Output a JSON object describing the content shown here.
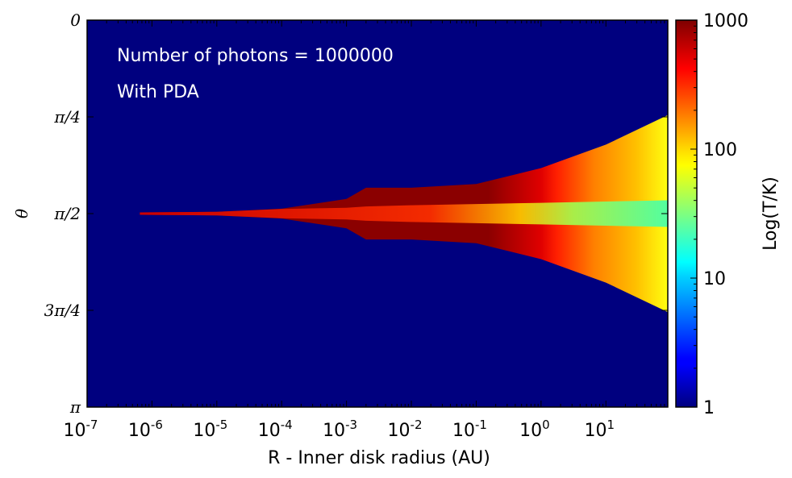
{
  "chart_data": {
    "type": "heatmap",
    "annotations": [
      "Number of photons = 1000000",
      "With PDA"
    ],
    "xlabel": "R - Inner disk radius (AU)",
    "ylabel": "θ",
    "x_scale": "log",
    "x_ticks": [
      {
        "value": 1e-07,
        "base": "10",
        "exp": "-7"
      },
      {
        "value": 1e-06,
        "base": "10",
        "exp": "-6"
      },
      {
        "value": 1e-05,
        "base": "10",
        "exp": "-5"
      },
      {
        "value": 0.0001,
        "base": "10",
        "exp": "-4"
      },
      {
        "value": 0.001,
        "base": "10",
        "exp": "-3"
      },
      {
        "value": 0.01,
        "base": "10",
        "exp": "-2"
      },
      {
        "value": 0.1,
        "base": "10",
        "exp": "-1"
      },
      {
        "value": 1.0,
        "base": "10",
        "exp": "0"
      },
      {
        "value": 10.0,
        "base": "10",
        "exp": "1"
      }
    ],
    "xlim": [
      1e-07,
      90
    ],
    "y_ticks": [
      {
        "value": 0,
        "label": "0"
      },
      {
        "value": 0.7854,
        "label": "π/4"
      },
      {
        "value": 1.5708,
        "label": "π/2"
      },
      {
        "value": 2.3562,
        "label": "3π/4"
      },
      {
        "value": 3.1416,
        "label": "π"
      }
    ],
    "ylim": [
      0,
      3.1416
    ],
    "colorbar": {
      "label": "Log(T/K)",
      "scale": "log",
      "ticks": [
        {
          "value": 1,
          "label": "1"
        },
        {
          "value": 10,
          "label": "10"
        },
        {
          "value": 100,
          "label": "100"
        },
        {
          "value": 1000,
          "label": "1000"
        }
      ],
      "range": [
        1,
        1000
      ],
      "colormap": "jet"
    },
    "background_value": 1,
    "disk_profile": [
      {
        "r": 6.5e-07,
        "half_width": 0.01,
        "T_midplane": 1000,
        "T_surface": 1000
      },
      {
        "r": 1e-05,
        "half_width": 0.015,
        "T_midplane": 1000,
        "T_surface": 1000
      },
      {
        "r": 0.0001,
        "half_width": 0.04,
        "T_midplane": 1000,
        "T_surface": 1000
      },
      {
        "r": 0.001,
        "half_width": 0.12,
        "T_midplane": 800,
        "T_surface": 1000
      },
      {
        "r": 0.002,
        "half_width": 0.21,
        "T_midplane": 700,
        "T_surface": 1000
      },
      {
        "r": 0.01,
        "half_width": 0.21,
        "T_midplane": 550,
        "T_surface": 1000
      },
      {
        "r": 0.1,
        "half_width": 0.24,
        "T_midplane": 300,
        "T_surface": 900
      },
      {
        "r": 1,
        "half_width": 0.37,
        "T_midplane": 70,
        "T_surface": 500
      },
      {
        "r": 10,
        "half_width": 0.56,
        "T_midplane": 30,
        "T_surface": 200
      },
      {
        "r": 90,
        "half_width": 0.8,
        "T_midplane": 25,
        "T_surface": 100
      }
    ]
  }
}
